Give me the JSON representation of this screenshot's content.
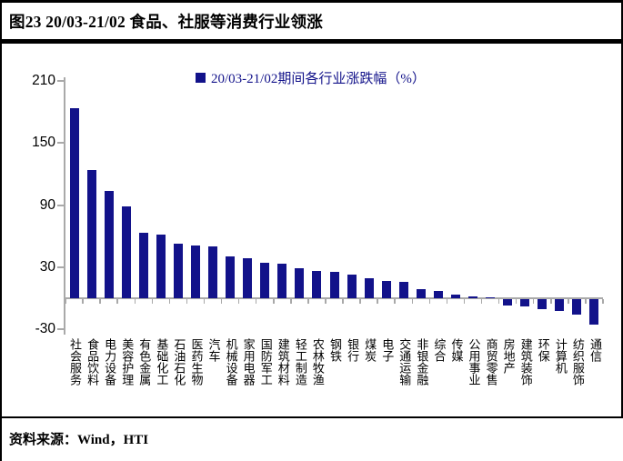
{
  "title": "图23 20/03-21/02 食品、社服等消费行业领涨",
  "footer": {
    "source": "资料来源：Wind，HTI"
  },
  "colors": {
    "bar": "#12128a",
    "legend_text": "#12128a",
    "axis": "#a9a9a9",
    "border": "#000000",
    "text": "#000000"
  },
  "chart_data": {
    "type": "bar",
    "legend": "20/03-21/02期间各行业涨跌幅（%）",
    "legend_position": "top-center",
    "grid": false,
    "ylim": [
      -30,
      210
    ],
    "yticks": [
      210,
      150,
      90,
      30,
      -30
    ],
    "categories": [
      "社会服务",
      "食品饮料",
      "电力设备",
      "美容护理",
      "有色金属",
      "基础化工",
      "石油石化",
      "医药生物",
      "汽车",
      "机械设备",
      "家用电器",
      "国防军工",
      "建筑材料",
      "轻工制造",
      "农林牧渔",
      "钢铁",
      "银行",
      "煤炭",
      "电子",
      "交通运输",
      "非银金融",
      "综合",
      "传媒",
      "公用事业",
      "商贸零售",
      "房地产",
      "建筑装饰",
      "环保",
      "计算机",
      "纺织服饰",
      "通信"
    ],
    "values": [
      184,
      124,
      104,
      89,
      63,
      61,
      53,
      51,
      50,
      40,
      39,
      34,
      33,
      29,
      26,
      25,
      23,
      19,
      17,
      16,
      9,
      7,
      3.5,
      2,
      0.5,
      -6,
      -7.5,
      -10,
      -11.5,
      -15,
      -25
    ]
  }
}
